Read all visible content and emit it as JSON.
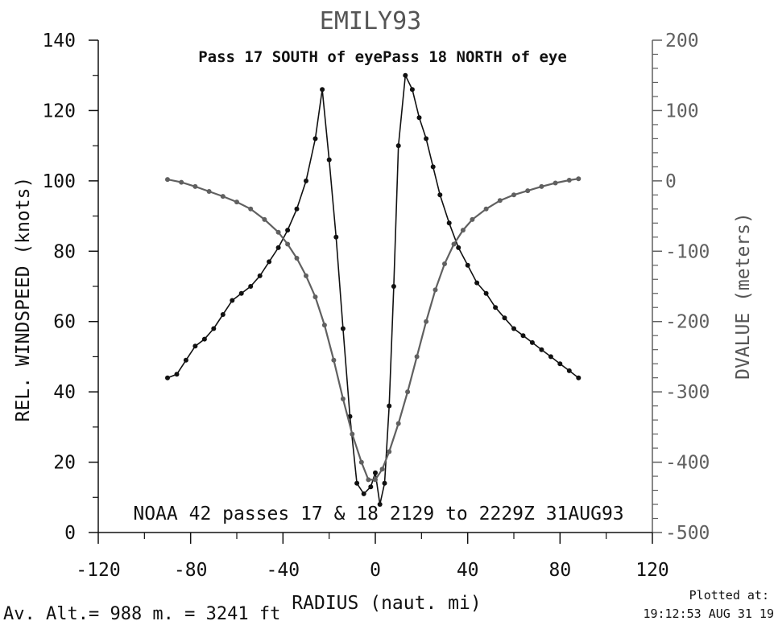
{
  "chart_data": {
    "type": "line",
    "title": "EMILY93",
    "subtitle": "Pass 17 SOUTH of eyePass 18 NORTH of eye",
    "annotation": "NOAA 42 passes 17 & 18   2129 to 2229Z 31AUG93",
    "xlabel": "RADIUS (naut. mi)",
    "ylabel_left": "REL. WINDSPEED (knots)",
    "ylabel_right": "DVALUE (meters)",
    "xlim": [
      -120,
      120
    ],
    "ylim_left": [
      0,
      140
    ],
    "ylim_right": [
      -500,
      200
    ],
    "x_ticks": [
      "-120",
      "-80",
      "-40",
      "0",
      "40",
      "80",
      "120"
    ],
    "left_ticks": [
      "0",
      "20",
      "40",
      "60",
      "80",
      "100",
      "120",
      "140"
    ],
    "right_ticks": [
      "-500",
      "-400",
      "-300",
      "-200",
      "-100",
      "0",
      "100",
      "200"
    ],
    "grid": false,
    "series": [
      {
        "axis": "left",
        "color": "#111111",
        "x": [
          -90,
          -86,
          -82,
          -78,
          -74,
          -70,
          -66,
          -62,
          -58,
          -54,
          -50,
          -46,
          -42,
          -38,
          -34,
          -30,
          -26,
          -23,
          -20,
          -17,
          -14,
          -11,
          -8,
          -5,
          -2,
          0,
          2,
          4,
          6,
          8,
          10,
          13,
          16,
          19,
          22,
          25,
          28,
          32,
          36,
          40,
          44,
          48,
          52,
          56,
          60,
          64,
          68,
          72,
          76,
          80,
          84,
          88
        ],
        "values": [
          44,
          45,
          49,
          53,
          55,
          58,
          62,
          66,
          68,
          70,
          73,
          77,
          81,
          86,
          92,
          100,
          112,
          126,
          106,
          84,
          58,
          33,
          14,
          11,
          13,
          17,
          8,
          14,
          36,
          70,
          110,
          130,
          126,
          118,
          112,
          104,
          96,
          88,
          81,
          76,
          71,
          68,
          64,
          61,
          58,
          56,
          54,
          52,
          50,
          48,
          46,
          44
        ]
      },
      {
        "axis": "right",
        "color": "#606060",
        "x": [
          -90,
          -84,
          -78,
          -72,
          -66,
          -60,
          -54,
          -48,
          -42,
          -38,
          -34,
          -30,
          -26,
          -22,
          -18,
          -14,
          -10,
          -6,
          -3,
          0,
          3,
          6,
          10,
          14,
          18,
          22,
          26,
          30,
          34,
          38,
          42,
          48,
          54,
          60,
          66,
          72,
          78,
          84,
          88
        ],
        "values": [
          2,
          -2,
          -8,
          -15,
          -22,
          -30,
          -40,
          -55,
          -73,
          -90,
          -110,
          -135,
          -165,
          -205,
          -255,
          -310,
          -360,
          -400,
          -425,
          -425,
          -410,
          -385,
          -345,
          -300,
          -250,
          -200,
          -155,
          -118,
          -90,
          -70,
          -55,
          -40,
          -28,
          -20,
          -14,
          -8,
          -3,
          1,
          3
        ]
      }
    ]
  },
  "footer": {
    "left": "Av. Alt.=  988 m. =  3241 ft",
    "right_line1": "Plotted at:",
    "right_line2": "19:12:53 AUG 31 19"
  }
}
